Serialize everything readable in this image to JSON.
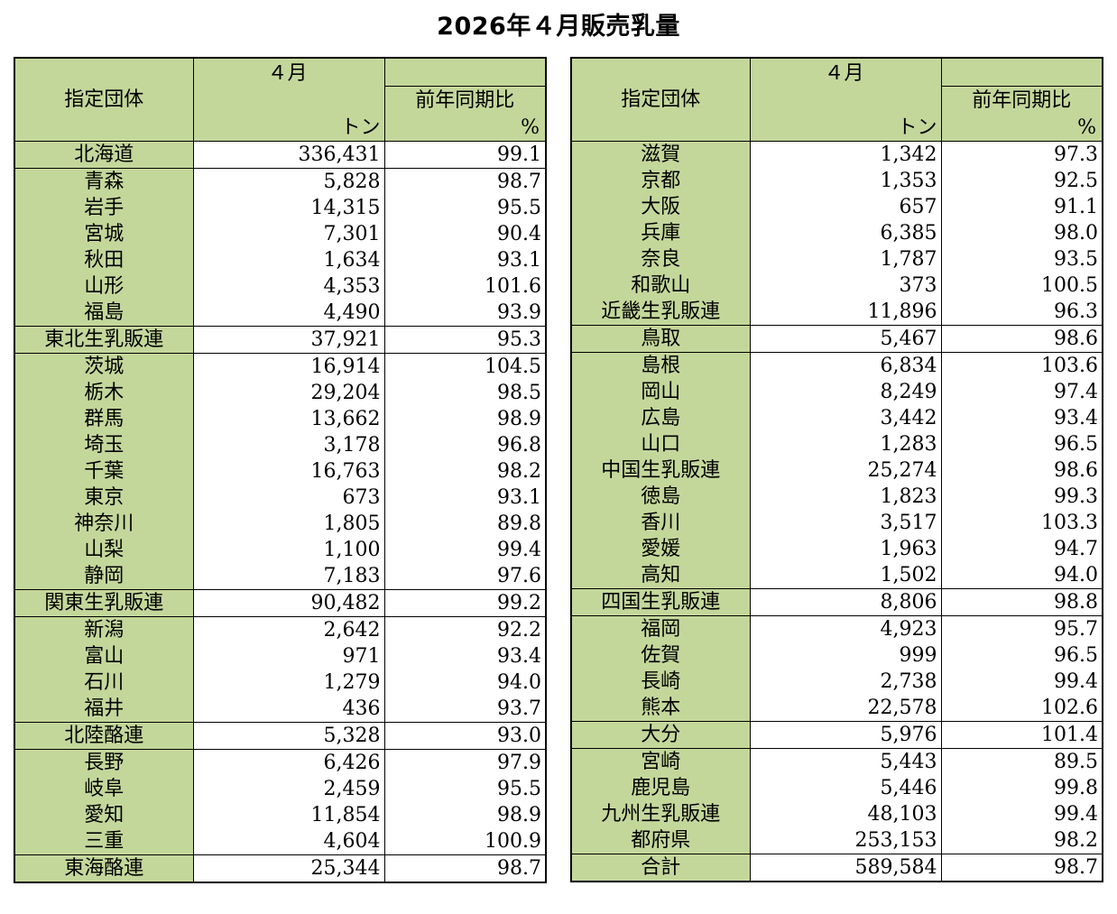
{
  "title": "2026年４月販売乳量",
  "header": {
    "name_col": "指定団体",
    "month": "４月",
    "yoy": "前年同期比",
    "unit_ton": "トン",
    "unit_pct": "%"
  },
  "left_rows": [
    {
      "name": "北海道",
      "ton": "336,431",
      "pct": "99.1",
      "type": "sum"
    },
    {
      "name": "青森",
      "ton": "5,828",
      "pct": "98.7",
      "type": "start"
    },
    {
      "name": "岩手",
      "ton": "14,315",
      "pct": "95.5",
      "type": ""
    },
    {
      "name": "宮城",
      "ton": "7,301",
      "pct": "90.4",
      "type": ""
    },
    {
      "name": "秋田",
      "ton": "1,634",
      "pct": "93.1",
      "type": ""
    },
    {
      "name": "山形",
      "ton": "4,353",
      "pct": "101.6",
      "type": ""
    },
    {
      "name": "福島",
      "ton": "4,490",
      "pct": "93.9",
      "type": ""
    },
    {
      "name": "東北生乳販連",
      "ton": "37,921",
      "pct": "95.3",
      "type": "sum"
    },
    {
      "name": "茨城",
      "ton": "16,914",
      "pct": "104.5",
      "type": "start"
    },
    {
      "name": "栃木",
      "ton": "29,204",
      "pct": "98.5",
      "type": ""
    },
    {
      "name": "群馬",
      "ton": "13,662",
      "pct": "98.9",
      "type": ""
    },
    {
      "name": "埼玉",
      "ton": "3,178",
      "pct": "96.8",
      "type": ""
    },
    {
      "name": "千葉",
      "ton": "16,763",
      "pct": "98.2",
      "type": ""
    },
    {
      "name": "東京",
      "ton": "673",
      "pct": "93.1",
      "type": ""
    },
    {
      "name": "神奈川",
      "ton": "1,805",
      "pct": "89.8",
      "type": ""
    },
    {
      "name": "山梨",
      "ton": "1,100",
      "pct": "99.4",
      "type": ""
    },
    {
      "name": "静岡",
      "ton": "7,183",
      "pct": "97.6",
      "type": ""
    },
    {
      "name": "関東生乳販連",
      "ton": "90,482",
      "pct": "99.2",
      "type": "sum"
    },
    {
      "name": "新潟",
      "ton": "2,642",
      "pct": "92.2",
      "type": "start"
    },
    {
      "name": "富山",
      "ton": "971",
      "pct": "93.4",
      "type": ""
    },
    {
      "name": "石川",
      "ton": "1,279",
      "pct": "94.0",
      "type": ""
    },
    {
      "name": "福井",
      "ton": "436",
      "pct": "93.7",
      "type": ""
    },
    {
      "name": "北陸酪連",
      "ton": "5,328",
      "pct": "93.0",
      "type": "sum"
    },
    {
      "name": "長野",
      "ton": "6,426",
      "pct": "97.9",
      "type": "start"
    },
    {
      "name": "岐阜",
      "ton": "2,459",
      "pct": "95.5",
      "type": ""
    },
    {
      "name": "愛知",
      "ton": "11,854",
      "pct": "98.9",
      "type": ""
    },
    {
      "name": "三重",
      "ton": "4,604",
      "pct": "100.9",
      "type": ""
    },
    {
      "name": "東海酪連",
      "ton": "25,344",
      "pct": "98.7",
      "type": "sum last"
    }
  ],
  "right_rows": [
    {
      "name": "滋賀",
      "ton": "1,342",
      "pct": "97.3",
      "type": "first"
    },
    {
      "name": "京都",
      "ton": "1,353",
      "pct": "92.5",
      "type": ""
    },
    {
      "name": "大阪",
      "ton": "657",
      "pct": "91.1",
      "type": ""
    },
    {
      "name": "兵庫",
      "ton": "6,385",
      "pct": "98.0",
      "type": ""
    },
    {
      "name": "奈良",
      "ton": "1,787",
      "pct": "93.5",
      "type": ""
    },
    {
      "name": "和歌山",
      "ton": "373",
      "pct": "100.5",
      "type": ""
    },
    {
      "name": "近畿生乳販連",
      "ton": "11,896",
      "pct": "96.3",
      "type": ""
    },
    {
      "name": "鳥取",
      "ton": "5,467",
      "pct": "98.6",
      "type": "sum"
    },
    {
      "name": "島根",
      "ton": "6,834",
      "pct": "103.6",
      "type": "start"
    },
    {
      "name": "岡山",
      "ton": "8,249",
      "pct": "97.4",
      "type": ""
    },
    {
      "name": "広島",
      "ton": "3,442",
      "pct": "93.4",
      "type": ""
    },
    {
      "name": "山口",
      "ton": "1,283",
      "pct": "96.5",
      "type": ""
    },
    {
      "name": "中国生乳販連",
      "ton": "25,274",
      "pct": "98.6",
      "type": ""
    },
    {
      "name": "徳島",
      "ton": "1,823",
      "pct": "99.3",
      "type": ""
    },
    {
      "name": "香川",
      "ton": "3,517",
      "pct": "103.3",
      "type": ""
    },
    {
      "name": "愛媛",
      "ton": "1,963",
      "pct": "94.7",
      "type": ""
    },
    {
      "name": "高知",
      "ton": "1,502",
      "pct": "94.0",
      "type": ""
    },
    {
      "name": "四国生乳販連",
      "ton": "8,806",
      "pct": "98.8",
      "type": "sum"
    },
    {
      "name": "福岡",
      "ton": "4,923",
      "pct": "95.7",
      "type": "start"
    },
    {
      "name": "佐賀",
      "ton": "999",
      "pct": "96.5",
      "type": ""
    },
    {
      "name": "長崎",
      "ton": "2,738",
      "pct": "99.4",
      "type": ""
    },
    {
      "name": "熊本",
      "ton": "22,578",
      "pct": "102.6",
      "type": ""
    },
    {
      "name": "大分",
      "ton": "5,976",
      "pct": "101.4",
      "type": "sum"
    },
    {
      "name": "宮崎",
      "ton": "5,443",
      "pct": "89.5",
      "type": "start"
    },
    {
      "name": "鹿児島",
      "ton": "5,446",
      "pct": "99.8",
      "type": ""
    },
    {
      "name": "九州生乳販連",
      "ton": "48,103",
      "pct": "99.4",
      "type": ""
    },
    {
      "name": "都府県",
      "ton": "253,153",
      "pct": "98.2",
      "type": ""
    },
    {
      "name": "合計",
      "ton": "589,584",
      "pct": "98.7",
      "type": "sum last"
    }
  ],
  "colors": {
    "header_fill": "#c4d79b",
    "border": "#000000"
  }
}
